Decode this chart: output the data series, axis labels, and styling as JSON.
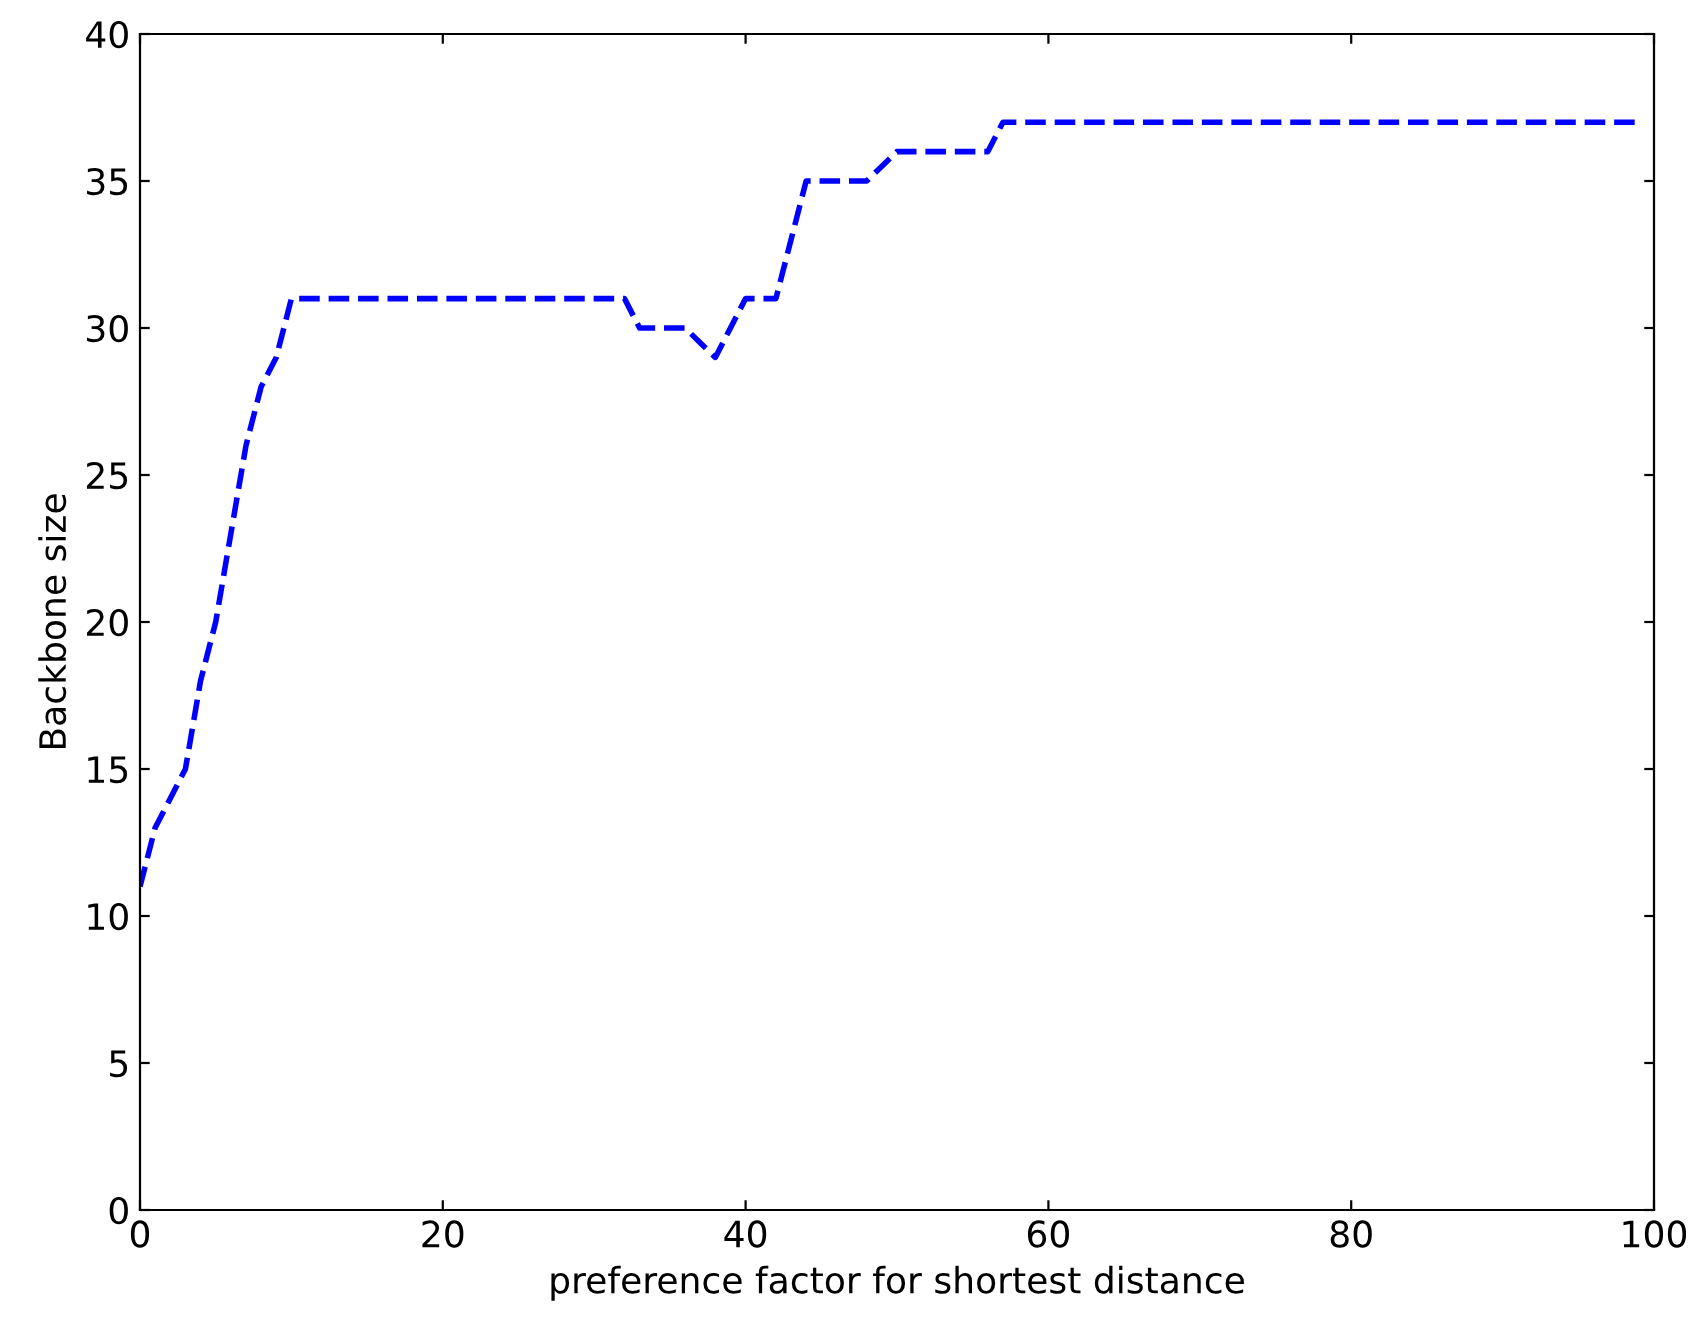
{
  "chart_data": {
    "type": "line",
    "xlabel": "preference factor for shortest distance",
    "ylabel": "Backbone size",
    "x": [
      0,
      1,
      2,
      3,
      4,
      5,
      6,
      7,
      8,
      9,
      10,
      32,
      33,
      36,
      37,
      38,
      39,
      40,
      42,
      43,
      44,
      48,
      49,
      50,
      56,
      57,
      99
    ],
    "series": [
      {
        "color": "#0000ff",
        "values": [
          11,
          13,
          14,
          15,
          18,
          20,
          23,
          26,
          28,
          29,
          31,
          31,
          30,
          30,
          29.5,
          29,
          30,
          31,
          31,
          33,
          35,
          35,
          35.5,
          36,
          36,
          37,
          37
        ]
      }
    ],
    "xlim": [
      0,
      100
    ],
    "ylim": [
      0,
      40
    ],
    "xticks": [
      0,
      20,
      40,
      60,
      80,
      100
    ],
    "yticks": [
      0,
      5,
      10,
      15,
      20,
      25,
      30,
      35,
      40
    ],
    "grid": false,
    "legend": false,
    "line_style": "dashed",
    "marker": "none"
  }
}
